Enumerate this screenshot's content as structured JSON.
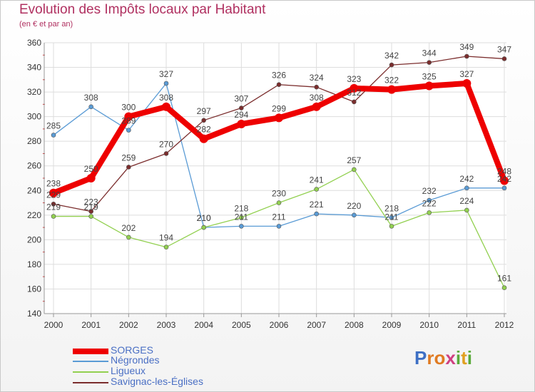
{
  "title": "Evolution des Impôts locaux par Habitant",
  "subtitle": "(en € et par an)",
  "logo": {
    "letters": [
      "P",
      "r",
      "o",
      "x",
      "i",
      "t",
      "i"
    ],
    "colors": [
      "#3d6fc4",
      "#e07b22",
      "#e07b22",
      "#d04080",
      "#5aaa3a",
      "#e0a020",
      "#5aaa3a"
    ]
  },
  "chart_data": {
    "type": "line",
    "title": "Evolution des Impôts locaux par Habitant",
    "ylabel": "(en € et par an)",
    "xlabel": "",
    "ylim": [
      140,
      360
    ],
    "yticks": [
      140,
      160,
      180,
      200,
      220,
      240,
      260,
      280,
      300,
      320,
      340,
      360
    ],
    "categories": [
      "2000",
      "2001",
      "2002",
      "2003",
      "2004",
      "2005",
      "2006",
      "2007",
      "2008",
      "2009",
      "2010",
      "2011",
      "2012"
    ],
    "series": [
      {
        "name": "Négrondes",
        "color": "#5a9bd5",
        "values": [
          285,
          308,
          289,
          327,
          210,
          211,
          211,
          221,
          220,
          218,
          232,
          242,
          242
        ]
      },
      {
        "name": "Ligueux",
        "color": "#92d050",
        "values": [
          219,
          219,
          202,
          194,
          210,
          218,
          230,
          241,
          257,
          211,
          222,
          224,
          161
        ]
      },
      {
        "name": "Savignac-les-Églises",
        "color": "#7b2d2d",
        "values": [
          229,
          223,
          259,
          270,
          297,
          307,
          326,
          324,
          312,
          342,
          344,
          349,
          347
        ]
      },
      {
        "name": "SORGES",
        "color": "#ee0000",
        "values": [
          238,
          250,
          300,
          308,
          282,
          294,
          299,
          308,
          323,
          322,
          325,
          327,
          248
        ]
      }
    ],
    "legend_order": [
      "SORGES",
      "Négrondes",
      "Ligueux",
      "Savignac-les-Églises"
    ]
  }
}
